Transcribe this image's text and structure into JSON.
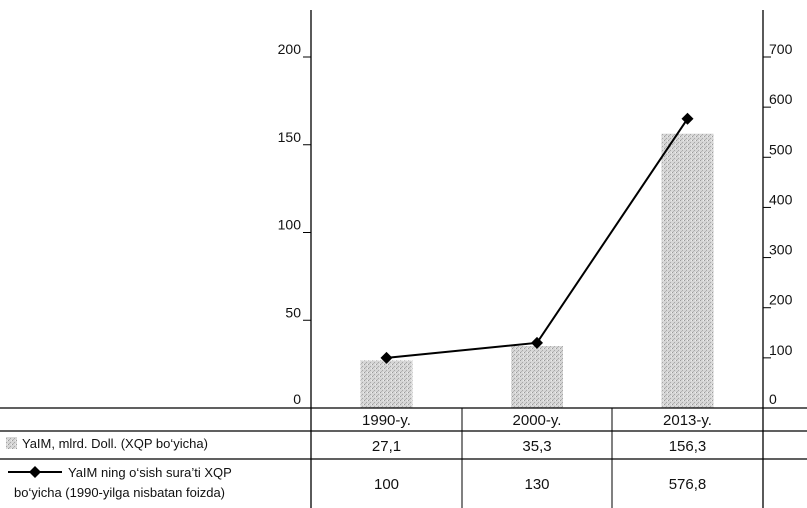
{
  "chart_data": {
    "type": "bar+line",
    "categories": [
      "1990-y.",
      "2000-y.",
      "2013-y."
    ],
    "series": [
      {
        "name": "YaIM, mlrd. Doll. (XQP bo‘yicha)",
        "type": "bar",
        "axis": "left",
        "values": [
          27.1,
          35.3,
          156.3
        ],
        "labels": [
          "27,1",
          "35,3",
          "156,3"
        ],
        "color": "#c8c8c8"
      },
      {
        "name_line1": "YaIM ning o‘sish sura’ti XQP",
        "name_line2": "bo‘yicha (1990-yilga nisbatan foizda)",
        "type": "line",
        "axis": "right",
        "values": [
          100,
          130,
          576.8
        ],
        "labels": [
          "100",
          "130",
          "576,8"
        ],
        "color": "#000000"
      }
    ],
    "left_axis": {
      "ylim": [
        0,
        200
      ],
      "ticks": [
        "0",
        "50",
        "100",
        "150",
        "200"
      ]
    },
    "right_axis": {
      "ylim": [
        0,
        700
      ],
      "ticks": [
        "0",
        "100",
        "200",
        "300",
        "400",
        "500",
        "600",
        "700"
      ]
    },
    "grid": false,
    "legend": "table-below"
  }
}
